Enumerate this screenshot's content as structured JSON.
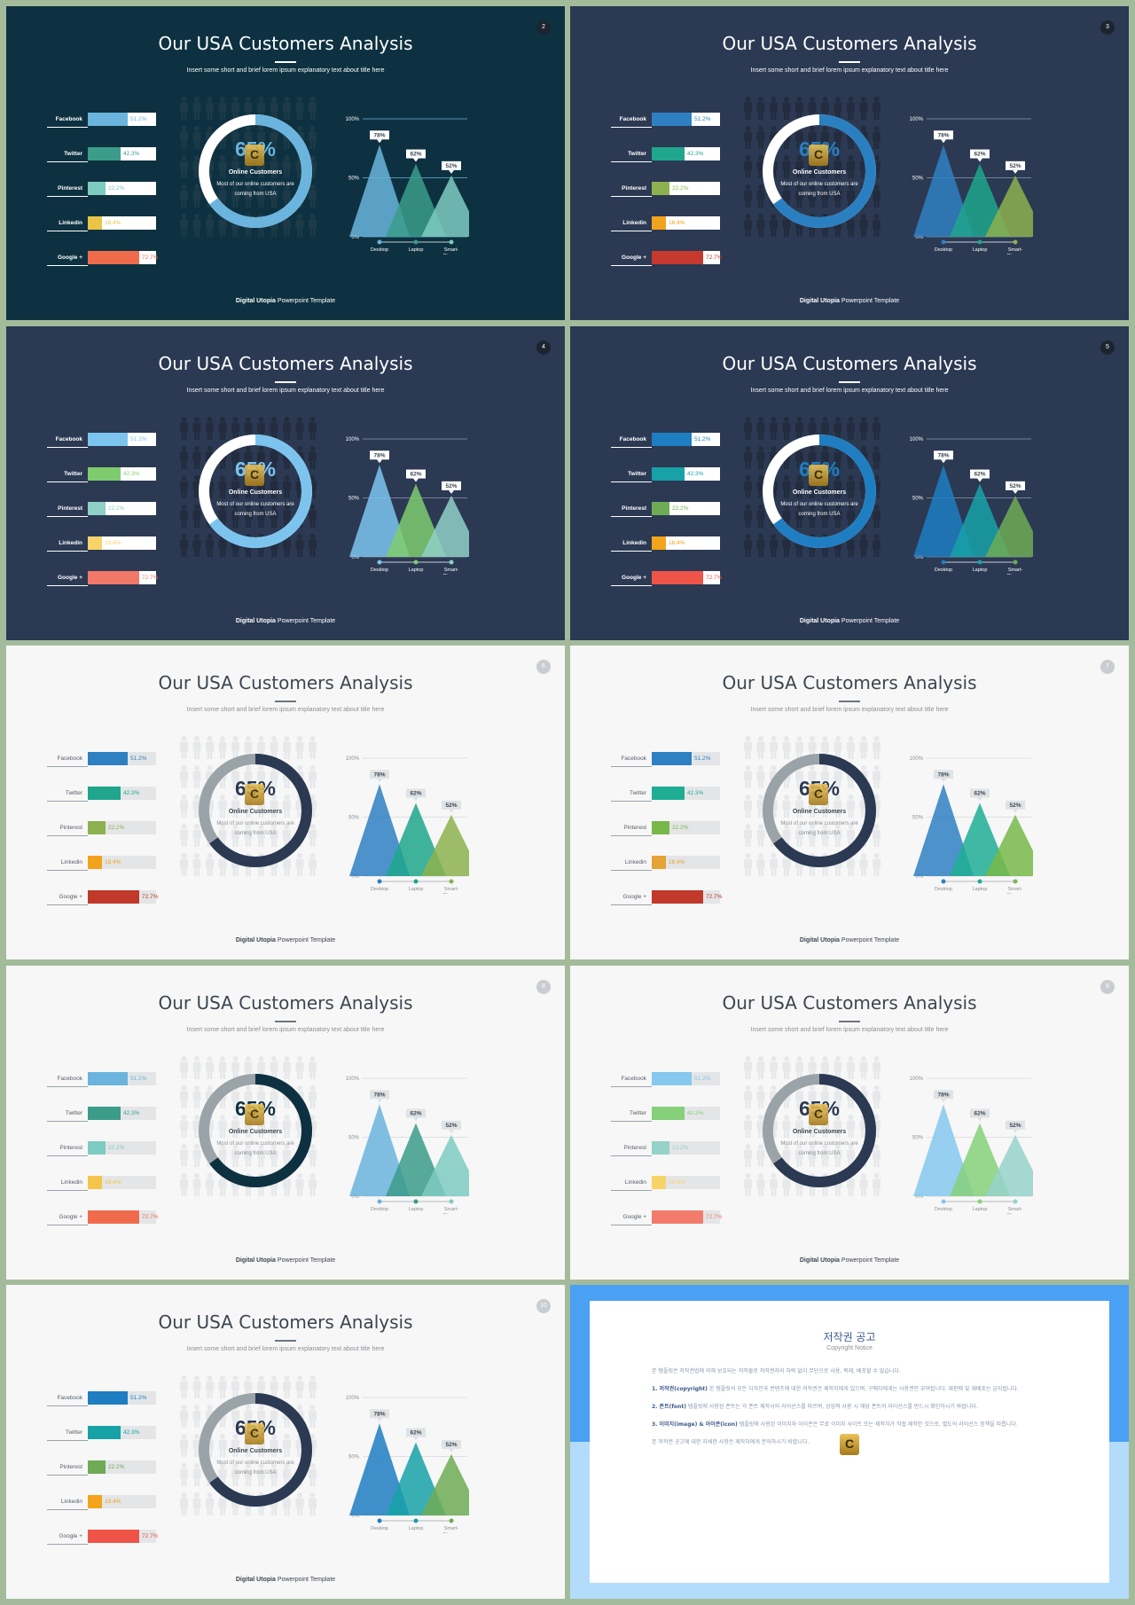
{
  "slide_title": "Our USA Customers Analysis",
  "slide_subtitle": "Insert some short and brief lorem ipsum explanatory text about title here",
  "footer_bold": "Digital Utopia",
  "footer_rest": " Powerpoint Template",
  "donut": {
    "value_label": "65%",
    "value": 65,
    "title": "Online Customers",
    "description": "Most of our online customers are coming from USA"
  },
  "bars": [
    {
      "label": "Facebook",
      "value": 51.2,
      "value_label": "51.2%"
    },
    {
      "label": "Twitter",
      "value": 42.3,
      "value_label": "42.3%"
    },
    {
      "label": "Pinterest",
      "value": 22.2,
      "value_label": "22.2%"
    },
    {
      "label": "Linkedin",
      "value": 18.4,
      "value_label": "18.4%"
    },
    {
      "label": "Google +",
      "value": 72.7,
      "value_label": "72.7%"
    }
  ],
  "chart_data": {
    "type": "area",
    "categories": [
      "Desktop",
      "Laptop",
      "Smart-Phones"
    ],
    "values": [
      78,
      62,
      52
    ],
    "data_labels": [
      "78%",
      "62%",
      "52%"
    ],
    "y_ticks": [
      "100%",
      "50%",
      "0%"
    ],
    "ylim": [
      0,
      100
    ]
  },
  "slides": [
    {
      "page": "2",
      "theme": "dark1",
      "style": "dark",
      "bar_colors": [
        "#6ab4dd",
        "#3b9c8a",
        "#7ecbc1",
        "#e8c547",
        "#f06b4c"
      ],
      "value_colors": [
        "#6ab4dd",
        "#3b9c8a",
        "#7ecbc1",
        "#e8c547",
        "#f06b4c"
      ],
      "tri_colors": [
        "#6ab4dd",
        "#3b9c8a",
        "#7ecbc1"
      ],
      "donut_main": "#6ab4dd",
      "donut_rest": "#ffffff",
      "pct_color": "#6ab4dd",
      "people_color": "#1c3a48",
      "gridline": "#6ab4dd"
    },
    {
      "page": "3",
      "theme": "dark2",
      "style": "dark",
      "bar_colors": [
        "#2f80c2",
        "#1fa68c",
        "#8db14f",
        "#f2a31d",
        "#c7392f"
      ],
      "value_colors": [
        "#2f80c2",
        "#1fa68c",
        "#8db14f",
        "#f2a31d",
        "#c7392f"
      ],
      "tri_colors": [
        "#2f80c2",
        "#1fa68c",
        "#8db14f"
      ],
      "donut_main": "#2a7fc0",
      "donut_rest": "#ffffff",
      "pct_color": "#2a7fc0",
      "people_color": "#222c3e",
      "gridline": "#8f9aae"
    },
    {
      "page": "4",
      "theme": "dark2",
      "style": "dark",
      "bar_colors": [
        "#7cc4ee",
        "#7ecc6e",
        "#8fd0c7",
        "#f8d36a",
        "#f27868"
      ],
      "value_colors": [
        "#7cc4ee",
        "#7ecc6e",
        "#8fd0c7",
        "#f8d36a",
        "#f27868"
      ],
      "tri_colors": [
        "#7cc4ee",
        "#7ecc6e",
        "#8fd0c7"
      ],
      "donut_main": "#7cc4ee",
      "donut_rest": "#ffffff",
      "pct_color": "#7cc4ee",
      "people_color": "#222c3e",
      "gridline": "#8f9aae"
    },
    {
      "page": "5",
      "theme": "dark2",
      "style": "dark",
      "bar_colors": [
        "#1f7ec2",
        "#17a2a8",
        "#6fab55",
        "#f2a51c",
        "#ee5448"
      ],
      "value_colors": [
        "#1f7ec2",
        "#17a2a8",
        "#6fab55",
        "#f2a51c",
        "#ee5448"
      ],
      "tri_colors": [
        "#1f7ec2",
        "#17a2a8",
        "#6fab55"
      ],
      "donut_main": "#1f7ec2",
      "donut_rest": "#ffffff",
      "pct_color": "#1f7ec2",
      "people_color": "#222c3e",
      "gridline": "#8f9aae"
    },
    {
      "page": "6",
      "theme": "light",
      "style": "light",
      "bar_colors": [
        "#2f80c2",
        "#1fa68c",
        "#8db14f",
        "#f2a31d",
        "#c0392b"
      ],
      "value_colors": [
        "#2f80c2",
        "#1fa68c",
        "#8db14f",
        "#f2a31d",
        "#c0392b"
      ],
      "tri_colors": [
        "#2f80c2",
        "#1fa68c",
        "#8db14f"
      ],
      "donut_main": "#2b3953",
      "donut_rest": "#9aa3a8",
      "pct_color": "#2b3953",
      "people_color": "#e6e8ea",
      "gridline": "#d5d8db"
    },
    {
      "page": "7",
      "theme": "light",
      "style": "light",
      "bar_colors": [
        "#2f80c2",
        "#1fae94",
        "#78b84a",
        "#e3a335",
        "#c0392b"
      ],
      "value_colors": [
        "#2f80c2",
        "#1fae94",
        "#78b84a",
        "#e3a335",
        "#c0392b"
      ],
      "tri_colors": [
        "#2f80c2",
        "#1fae94",
        "#78b84a"
      ],
      "donut_main": "#2b3953",
      "donut_rest": "#9aa3a8",
      "pct_color": "#2b3953",
      "people_color": "#e6e8ea",
      "gridline": "#d5d8db"
    },
    {
      "page": "8",
      "theme": "light",
      "style": "light",
      "bar_colors": [
        "#6ab4dd",
        "#3b9c8a",
        "#7ecbc1",
        "#f5c44a",
        "#f06b4c"
      ],
      "value_colors": [
        "#6ab4dd",
        "#3b9c8a",
        "#7ecbc1",
        "#f5c44a",
        "#f06b4c"
      ],
      "tri_colors": [
        "#6ab4dd",
        "#3b9c8a",
        "#7ecbc1"
      ],
      "donut_main": "#0d3140",
      "donut_rest": "#9aa3a8",
      "pct_color": "#0d3140",
      "people_color": "#e6e8ea",
      "gridline": "#d5d8db"
    },
    {
      "page": "9",
      "theme": "light",
      "style": "light",
      "bar_colors": [
        "#86c8ee",
        "#86d07a",
        "#96d2ca",
        "#f8d36a",
        "#f37b6c"
      ],
      "value_colors": [
        "#86c8ee",
        "#86d07a",
        "#96d2ca",
        "#f8d36a",
        "#f37b6c"
      ],
      "tri_colors": [
        "#86c8ee",
        "#86d07a",
        "#96d2ca"
      ],
      "donut_main": "#2b3953",
      "donut_rest": "#9aa3a8",
      "pct_color": "#2b3953",
      "people_color": "#e6e8ea",
      "gridline": "#d5d8db"
    },
    {
      "page": "10",
      "theme": "light",
      "style": "light",
      "bar_colors": [
        "#1f7ec2",
        "#17a2a8",
        "#6fab55",
        "#f2a51c",
        "#ee5448"
      ],
      "value_colors": [
        "#1f7ec2",
        "#17a2a8",
        "#6fab55",
        "#f2a51c",
        "#ee5448"
      ],
      "tri_colors": [
        "#1f7ec2",
        "#17a2a8",
        "#6fab55"
      ],
      "donut_main": "#2b3953",
      "donut_rest": "#9aa3a8",
      "pct_color": "#2b3953",
      "people_color": "#e6e8ea",
      "gridline": "#d5d8db"
    }
  ],
  "notice": {
    "title": "저작권 공고",
    "subtitle": "Copyright Notice",
    "paragraphs": [
      {
        "heading": "",
        "text": "본 템플릿은 저작권법에 의해 보호되는 저작물로 저작권자의 허락 없이 무단으로 사용, 복제, 배포할 수 없습니다."
      },
      {
        "heading": "1. 저작권(copyright)",
        "text": " 본 템플릿의 모든 디자인과 콘텐츠에 대한 저작권은 제작자에게 있으며, 구매자에게는 사용권만 부여됩니다. 재판매 및 재배포는 금지됩니다."
      },
      {
        "heading": "2. 폰트(font)",
        "text": " 템플릿에 사용된 폰트는 각 폰트 제작사의 라이선스를 따르며, 상업적 사용 시 해당 폰트의 라이선스를 반드시 확인하시기 바랍니다."
      },
      {
        "heading": "3. 이미지(image) & 아이콘(icon)",
        "text": " 템플릿에 사용된 이미지와 아이콘은 무료 이미지 사이트 또는 제작자가 직접 제작한 것으로, 별도의 라이선스 정책을 따릅니다."
      },
      {
        "heading": "",
        "text": "본 저작권 공고에 대한 자세한 사항은 제작자에게 문의하시기 바랍니다."
      }
    ]
  }
}
